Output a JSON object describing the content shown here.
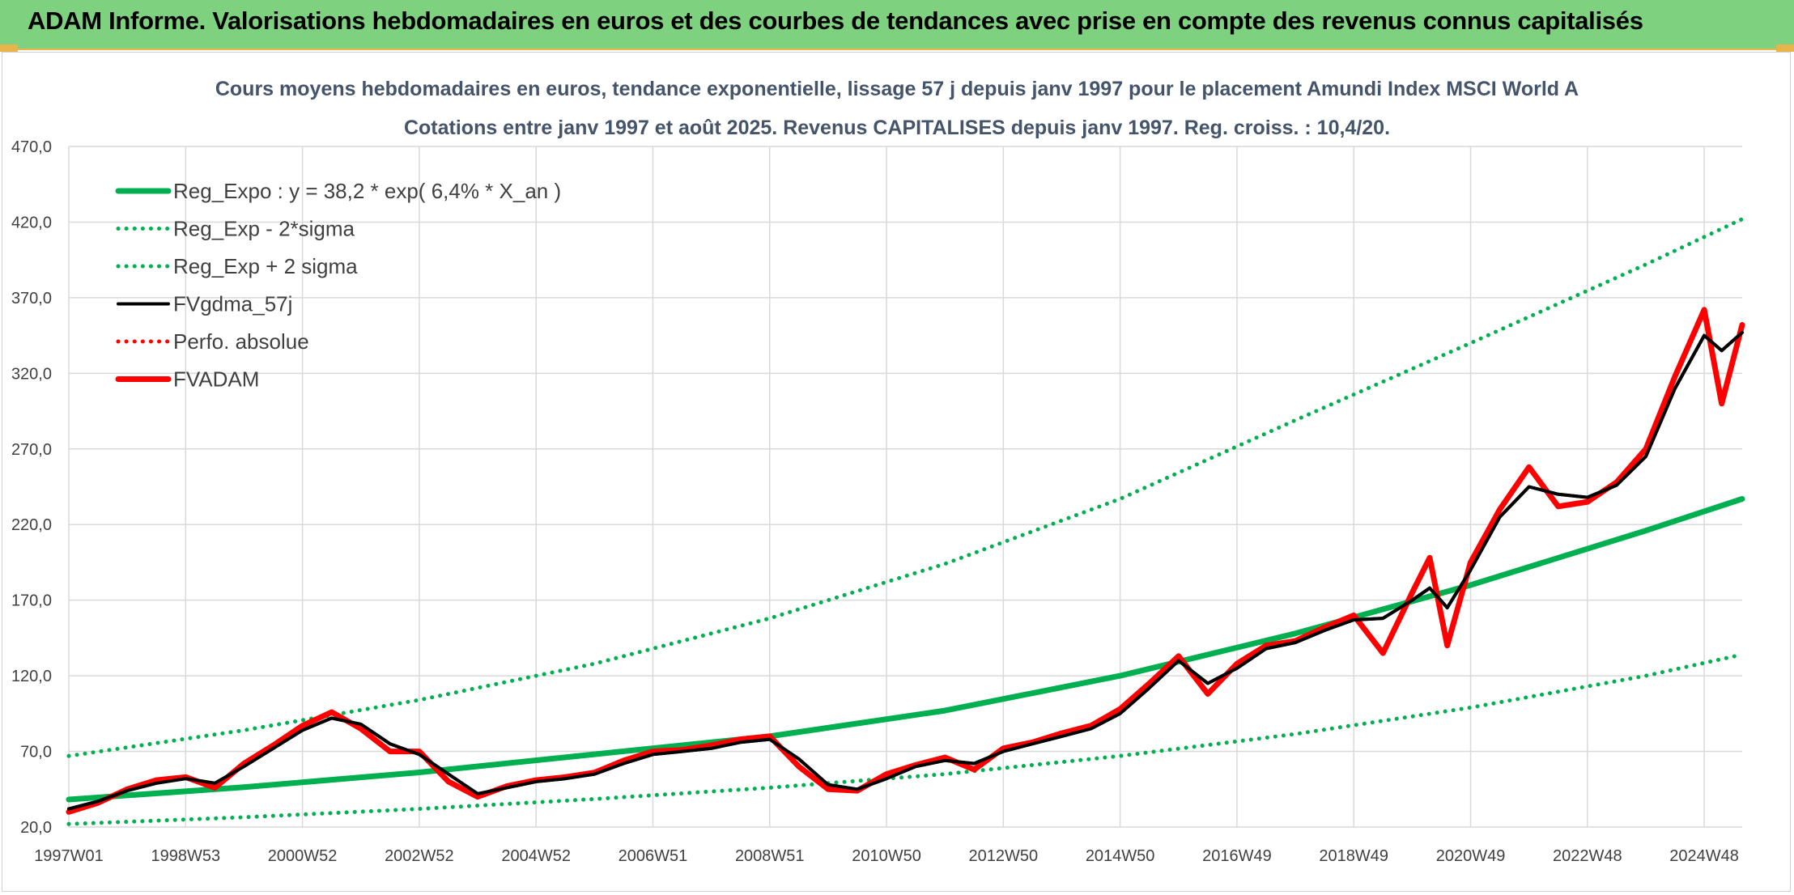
{
  "header": {
    "title": "ADAM Informe. Valorisations hebdomadaires en euros et des courbes de tendances avec prise en compte des revenus connus capitalisés"
  },
  "colors": {
    "banner": "#7ed17e",
    "accent": "#e9b44c",
    "reg_green": "#00b050",
    "fvadam_red": "#ff0000",
    "fvgdma_black": "#000000"
  },
  "chart_data": {
    "type": "line",
    "title": "Cours moyens hebdomadaires en euros, tendance exponentielle, lissage 57 j depuis janv 1997 pour le placement Amundi Index MSCI World A",
    "subtitle": "Cotations entre janv 1997 et août 2025. Revenus CAPITALISES depuis janv 1997. Reg. croiss. : 10,4/20.",
    "xlabel": "",
    "ylabel": "",
    "ylim": [
      20,
      470
    ],
    "xlim": [
      1997.0,
      2025.65
    ],
    "grid": true,
    "legend_position": "top-left",
    "y_ticks": [
      "20,0",
      "70,0",
      "120,0",
      "170,0",
      "220,0",
      "270,0",
      "320,0",
      "370,0",
      "420,0",
      "470,0"
    ],
    "x_ticks": [
      {
        "label": "1997W01",
        "year": 1997.0
      },
      {
        "label": "1998W53",
        "year": 1999.0
      },
      {
        "label": "2000W52",
        "year": 2001.0
      },
      {
        "label": "2002W52",
        "year": 2003.0
      },
      {
        "label": "2004W52",
        "year": 2005.0
      },
      {
        "label": "2006W51",
        "year": 2007.0
      },
      {
        "label": "2008W51",
        "year": 2009.0
      },
      {
        "label": "2010W50",
        "year": 2011.0
      },
      {
        "label": "2012W50",
        "year": 2013.0
      },
      {
        "label": "2014W50",
        "year": 2015.0
      },
      {
        "label": "2016W49",
        "year": 2017.0
      },
      {
        "label": "2018W49",
        "year": 2019.0
      },
      {
        "label": "2020W49",
        "year": 2021.0
      },
      {
        "label": "2022W48",
        "year": 2023.0
      },
      {
        "label": "2024W48",
        "year": 2025.0
      }
    ],
    "series": [
      {
        "name": "Reg_Expo : y = 38,2 * exp( 6,4% *  X_an )",
        "style": "solid-thick",
        "color": "#00b050",
        "x": [
          1997.0,
          2000.0,
          2003.0,
          2006.0,
          2009.0,
          2012.0,
          2015.0,
          2018.0,
          2021.0,
          2024.0,
          2025.65
        ],
        "values": [
          38.2,
          46.3,
          56.1,
          68.1,
          80.0,
          97.0,
          120.0,
          148.0,
          180.0,
          216.0,
          237.0
        ]
      },
      {
        "name": "Reg_Exp - 2*sigma",
        "style": "dotted",
        "color": "#00b050",
        "x": [
          1997.0,
          2000.0,
          2003.0,
          2006.0,
          2009.0,
          2012.0,
          2015.0,
          2018.0,
          2021.0,
          2024.0,
          2025.65
        ],
        "values": [
          22.0,
          26.5,
          32.0,
          38.5,
          46.0,
          55.0,
          67.0,
          81.5,
          99.0,
          120.0,
          134.0
        ]
      },
      {
        "name": "Reg_Exp + 2 sigma",
        "style": "dotted",
        "color": "#00b050",
        "x": [
          1997.0,
          2000.0,
          2003.0,
          2006.0,
          2009.0,
          2012.0,
          2015.0,
          2018.0,
          2021.0,
          2024.0,
          2025.65
        ],
        "values": [
          67.0,
          84.0,
          104.0,
          128.0,
          158.0,
          194.0,
          237.0,
          289.0,
          340.0,
          392.0,
          422.0
        ]
      },
      {
        "name": "FVgdma_57j",
        "style": "solid",
        "color": "#000000",
        "x": [
          1997.0,
          1997.5,
          1998.0,
          1998.5,
          1999.0,
          1999.5,
          2000.0,
          2000.5,
          2001.0,
          2001.5,
          2002.0,
          2002.5,
          2003.0,
          2003.5,
          2004.0,
          2004.5,
          2005.0,
          2005.5,
          2006.0,
          2006.5,
          2007.0,
          2007.5,
          2008.0,
          2008.5,
          2009.0,
          2009.5,
          2010.0,
          2010.5,
          2011.0,
          2011.5,
          2012.0,
          2012.5,
          2013.0,
          2013.5,
          2014.0,
          2014.5,
          2015.0,
          2015.5,
          2016.0,
          2016.5,
          2017.0,
          2017.5,
          2018.0,
          2018.5,
          2019.0,
          2019.5,
          2020.0,
          2020.3,
          2020.6,
          2021.0,
          2021.5,
          2022.0,
          2022.5,
          2023.0,
          2023.5,
          2024.0,
          2024.5,
          2025.0,
          2025.3,
          2025.65
        ],
        "values": [
          32,
          37,
          44,
          49,
          52,
          49,
          60,
          72,
          84,
          92,
          88,
          75,
          68,
          55,
          42,
          46,
          50,
          52,
          55,
          62,
          68,
          70,
          72,
          76,
          78,
          65,
          48,
          45,
          52,
          60,
          64,
          62,
          70,
          75,
          80,
          85,
          95,
          112,
          130,
          115,
          125,
          138,
          142,
          150,
          157,
          158,
          170,
          178,
          165,
          190,
          225,
          245,
          240,
          238,
          246,
          265,
          310,
          345,
          335,
          347
        ]
      },
      {
        "name": "Perfo. absolue",
        "style": "dotted",
        "color": "#ff0000",
        "x": [
          1997.0,
          1997.5,
          1998.0,
          1998.5,
          1999.0,
          1999.5,
          2000.0,
          2000.5,
          2001.0,
          2001.5,
          2002.0,
          2002.5,
          2003.0,
          2003.5,
          2004.0,
          2004.5,
          2005.0,
          2005.5,
          2006.0,
          2006.5,
          2007.0,
          2007.5,
          2008.0,
          2008.5,
          2009.0,
          2009.5,
          2010.0,
          2010.5,
          2011.0,
          2011.5,
          2012.0,
          2012.5,
          2013.0,
          2013.5,
          2014.0,
          2014.5,
          2015.0,
          2015.5,
          2016.0,
          2016.5,
          2017.0,
          2017.5,
          2018.0,
          2018.5,
          2019.0,
          2019.5,
          2020.0,
          2020.3,
          2020.6,
          2021.0,
          2021.5,
          2022.0,
          2022.5,
          2023.0,
          2023.5,
          2024.0,
          2024.5,
          2025.0,
          2025.3,
          2025.65
        ],
        "values": [
          30,
          36,
          45,
          51,
          53,
          46,
          62,
          74,
          87,
          96,
          85,
          70,
          70,
          50,
          40,
          47,
          51,
          53,
          56,
          64,
          70,
          71,
          74,
          78,
          80,
          60,
          45,
          44,
          55,
          61,
          66,
          58,
          72,
          76,
          82,
          87,
          98,
          115,
          133,
          108,
          128,
          140,
          143,
          152,
          160,
          135,
          175,
          198,
          140,
          195,
          230,
          258,
          232,
          235,
          248,
          270,
          318,
          362,
          300,
          352
        ]
      },
      {
        "name": "FVADAM",
        "style": "solid-thick",
        "color": "#ff0000",
        "x": [
          1997.0,
          1997.5,
          1998.0,
          1998.5,
          1999.0,
          1999.5,
          2000.0,
          2000.5,
          2001.0,
          2001.5,
          2002.0,
          2002.5,
          2003.0,
          2003.5,
          2004.0,
          2004.5,
          2005.0,
          2005.5,
          2006.0,
          2006.5,
          2007.0,
          2007.5,
          2008.0,
          2008.5,
          2009.0,
          2009.5,
          2010.0,
          2010.5,
          2011.0,
          2011.5,
          2012.0,
          2012.5,
          2013.0,
          2013.5,
          2014.0,
          2014.5,
          2015.0,
          2015.5,
          2016.0,
          2016.5,
          2017.0,
          2017.5,
          2018.0,
          2018.5,
          2019.0,
          2019.5,
          2020.0,
          2020.3,
          2020.6,
          2021.0,
          2021.5,
          2022.0,
          2022.5,
          2023.0,
          2023.5,
          2024.0,
          2024.5,
          2025.0,
          2025.3,
          2025.65
        ],
        "values": [
          30,
          36,
          45,
          51,
          53,
          46,
          62,
          74,
          87,
          96,
          85,
          70,
          70,
          50,
          40,
          47,
          51,
          53,
          56,
          64,
          70,
          71,
          74,
          78,
          80,
          60,
          45,
          44,
          55,
          61,
          66,
          58,
          72,
          76,
          82,
          87,
          98,
          115,
          133,
          108,
          128,
          140,
          143,
          152,
          160,
          135,
          175,
          198,
          140,
          195,
          230,
          258,
          232,
          235,
          248,
          270,
          318,
          362,
          300,
          352
        ]
      }
    ]
  }
}
